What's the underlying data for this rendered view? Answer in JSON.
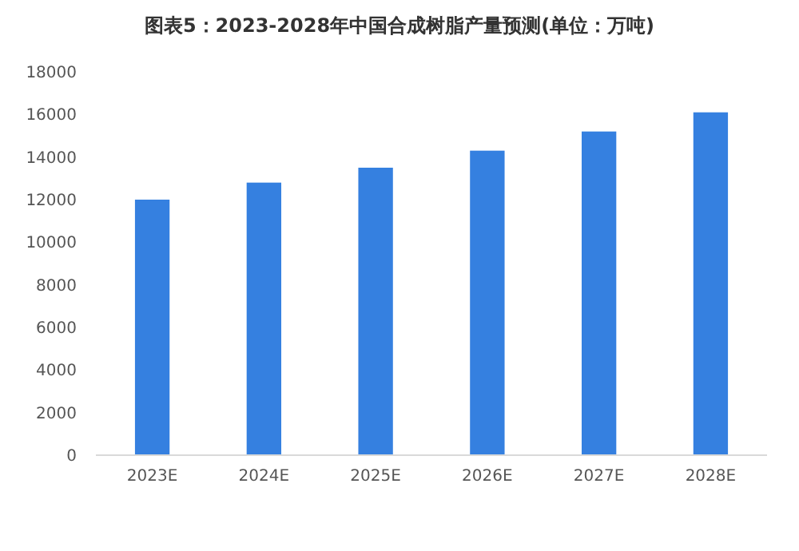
{
  "chart_data": {
    "type": "bar",
    "title": "图表5：2023-2028年中国合成树脂产量预测(单位：万吨)",
    "categories": [
      "2023E",
      "2024E",
      "2025E",
      "2026E",
      "2027E",
      "2028E"
    ],
    "values": [
      12000,
      12800,
      13500,
      14300,
      15200,
      16100
    ],
    "color": "#3580e0",
    "ylim": [
      0,
      18000
    ],
    "yticks": [
      0,
      2000,
      4000,
      6000,
      8000,
      10000,
      12000,
      14000,
      16000,
      18000
    ],
    "grid": false
  }
}
